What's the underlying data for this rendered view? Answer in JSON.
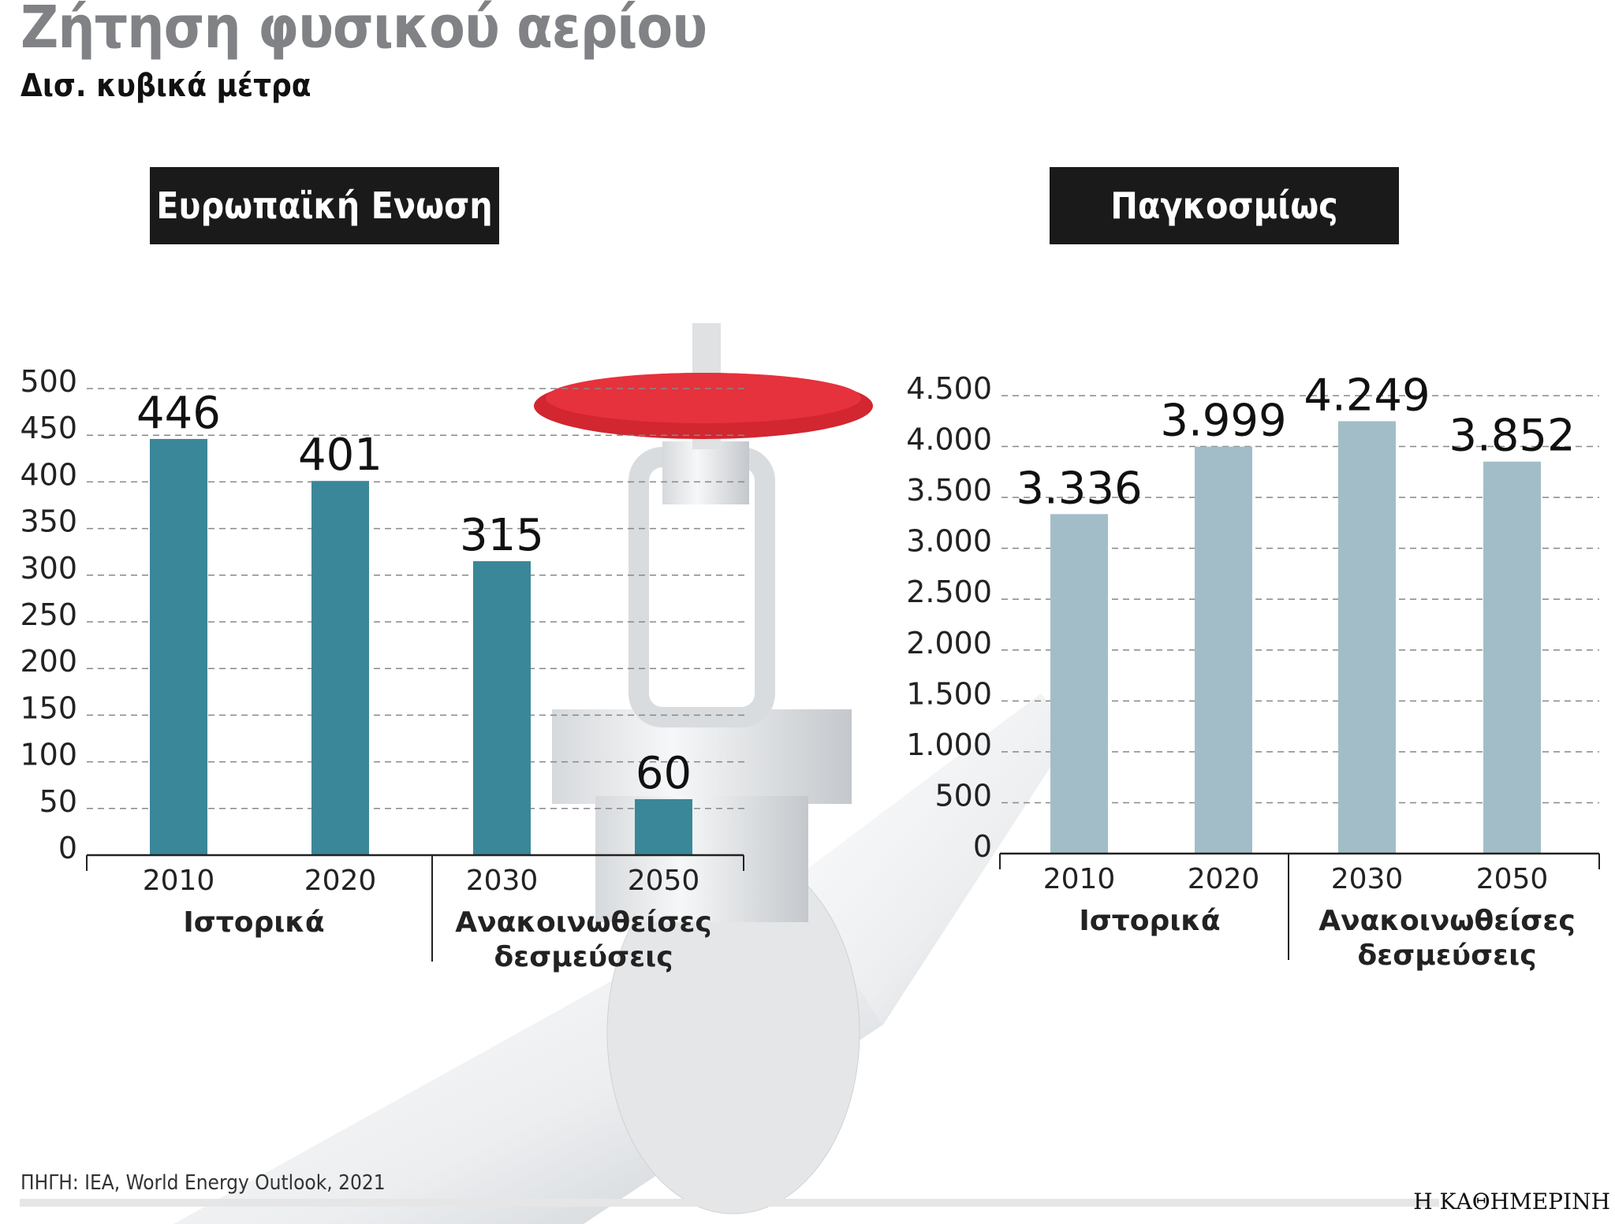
{
  "header": {
    "title": "Ζήτηση φυσικού αερίου",
    "subtitle": "Δισ. κυβικά μέτρα"
  },
  "footer": {
    "source": "ΠΗΓΗ: IEA, World Energy Outlook, 2021",
    "brand": "Η ΚΑΘΗΜΕΡΙΝΗ"
  },
  "colors": {
    "eu_bar": "#3a8799",
    "world_bar": "#a3bdc8",
    "valve_wheel": "#d22630",
    "title": "#808285"
  },
  "illustration": "gas-pipeline-valve",
  "chart_data": [
    {
      "type": "bar",
      "title": "Ευρωπαϊκή Ενωση",
      "categories": [
        "2010",
        "2020",
        "2030",
        "2050"
      ],
      "values": [
        446,
        401,
        315,
        60
      ],
      "value_labels": [
        "446",
        "401",
        "315",
        "60"
      ],
      "groups": [
        {
          "label": "Ιστορικά",
          "categories": [
            "2010",
            "2020"
          ]
        },
        {
          "label": "Ανακοινωθείσες δεσμεύσεις",
          "categories": [
            "2030",
            "2050"
          ]
        }
      ],
      "ylim": [
        0,
        500
      ],
      "yticks": [
        0,
        50,
        100,
        150,
        200,
        250,
        300,
        350,
        400,
        450,
        500
      ],
      "ytick_labels": [
        "0",
        "50",
        "100",
        "150",
        "200",
        "250",
        "300",
        "350",
        "400",
        "450",
        "500"
      ],
      "grid": true
    },
    {
      "type": "bar",
      "title": "Παγκοσμίως",
      "categories": [
        "2010",
        "2020",
        "2030",
        "2050"
      ],
      "values": [
        3336,
        3999,
        4249,
        3852
      ],
      "value_labels": [
        "3.336",
        "3.999",
        "4.249",
        "3.852"
      ],
      "groups": [
        {
          "label": "Ιστορικά",
          "categories": [
            "2010",
            "2020"
          ]
        },
        {
          "label": "Ανακοινωθείσες δεσμεύσεις",
          "categories": [
            "2030",
            "2050"
          ]
        }
      ],
      "ylim": [
        0,
        4500
      ],
      "yticks": [
        0,
        500,
        1000,
        1500,
        2000,
        2500,
        3000,
        3500,
        4000,
        4500
      ],
      "ytick_labels": [
        "0",
        "500",
        "1.000",
        "1.500",
        "2.000",
        "2.500",
        "3.000",
        "3.500",
        "4.000",
        "4.500"
      ],
      "grid": true
    }
  ]
}
